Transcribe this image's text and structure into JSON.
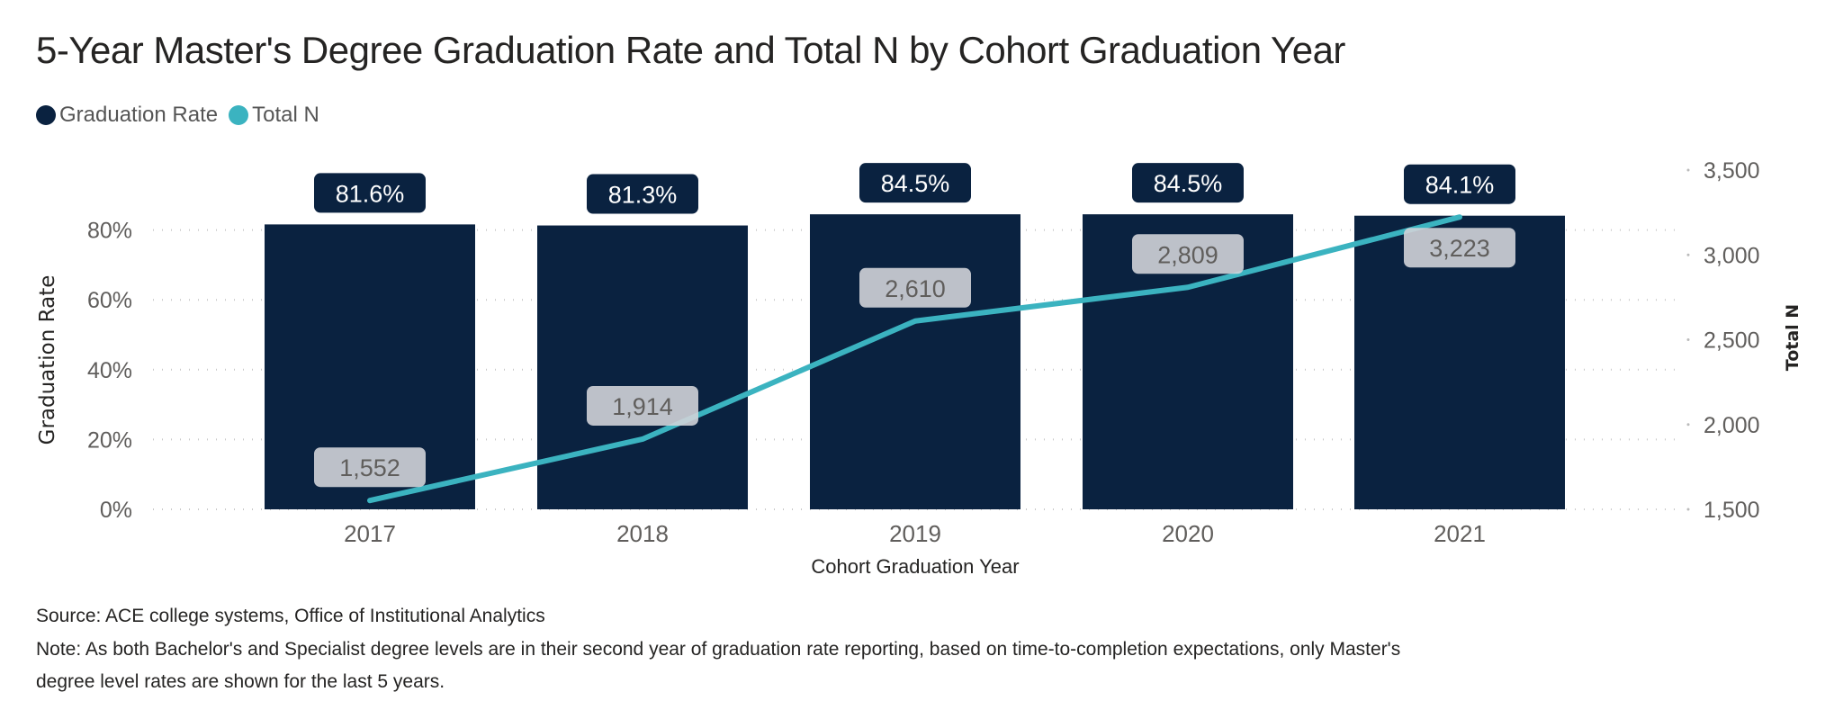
{
  "title": "5-Year Master's Degree Graduation Rate and Total N by Cohort Graduation Year",
  "legend": [
    {
      "label": "Graduation Rate",
      "color": "#0a2240"
    },
    {
      "label": "Total N",
      "color": "#3bb3c0"
    }
  ],
  "footer": {
    "source": "Source: ACE college systems, Office of Institutional Analytics",
    "note_line1": "Note: As both Bachelor's and Specialist degree levels are in their second year of graduation rate reporting, based on time-to-completion expectations, only Master's",
    "note_line2": "degree level rates are shown for the last 5 years."
  },
  "chart_data": {
    "type": "bar+line",
    "title": "5-Year Master's Degree Graduation Rate and Total N by Cohort Graduation Year",
    "xlabel": "Cohort Graduation Year",
    "ylabel": "Graduation Rate",
    "y2label": "Total N",
    "categories": [
      "2017",
      "2018",
      "2019",
      "2020",
      "2021"
    ],
    "series": [
      {
        "name": "Graduation Rate",
        "type": "bar",
        "axis": "left",
        "color": "#0a2240",
        "values": [
          81.6,
          81.3,
          84.5,
          84.5,
          84.1
        ],
        "labels": [
          "81.6%",
          "81.3%",
          "84.5%",
          "84.5%",
          "84.1%"
        ]
      },
      {
        "name": "Total N",
        "type": "line",
        "axis": "right",
        "color": "#3bb3c0",
        "values": [
          1552,
          1914,
          2610,
          2809,
          3223
        ],
        "labels": [
          "1,552",
          "1,914",
          "2,610",
          "2,809",
          "3,223"
        ]
      }
    ],
    "yticks": [
      "0%",
      "20%",
      "40%",
      "60%",
      "80%"
    ],
    "yticks_values": [
      0,
      20,
      40,
      60,
      80
    ],
    "y2ticks": [
      "1,500",
      "2,000",
      "2,500",
      "3,000",
      "3,500"
    ],
    "y2ticks_values": [
      1500,
      2000,
      2500,
      3000,
      3500
    ],
    "ylim": [
      0,
      100
    ],
    "y2lim": [
      1500,
      3500
    ],
    "grid": true,
    "legend_position": "top-left"
  }
}
